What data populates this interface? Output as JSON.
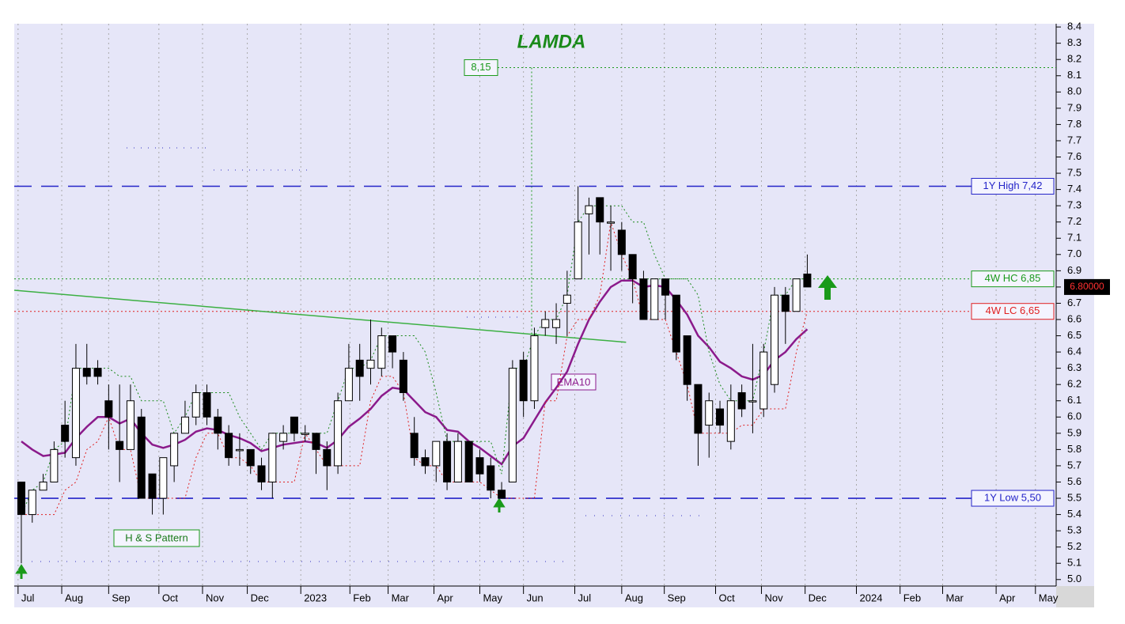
{
  "chart_data": {
    "type": "candlestick",
    "title": "LAMDA",
    "x": [
      0,
      1,
      2,
      3,
      4,
      5,
      6,
      7,
      8,
      9,
      10,
      11,
      12,
      13,
      14,
      15,
      16,
      17,
      18,
      19,
      20,
      21,
      22,
      23,
      24,
      25,
      26,
      27,
      28,
      29,
      30,
      31,
      32,
      33,
      34,
      35,
      36,
      37,
      38,
      39,
      40,
      41,
      42,
      43,
      44,
      45,
      46,
      47,
      48,
      49,
      50,
      51,
      52,
      53,
      54,
      55,
      56,
      57,
      58,
      59,
      60,
      61,
      62,
      63,
      64,
      65,
      66,
      67,
      68,
      69,
      70,
      71,
      72
    ],
    "open": [
      5.6,
      5.4,
      5.55,
      5.6,
      5.95,
      5.75,
      6.3,
      6.3,
      6.1,
      5.85,
      5.8,
      6.0,
      5.65,
      5.5,
      5.7,
      5.9,
      6.0,
      6.15,
      6.0,
      5.9,
      5.8,
      5.8,
      5.7,
      5.6,
      5.85,
      6.0,
      5.9,
      5.9,
      5.8,
      5.7,
      6.1,
      6.35,
      6.3,
      6.3,
      6.5,
      6.35,
      5.9,
      5.75,
      5.7,
      5.85,
      5.6,
      5.85,
      5.75,
      5.7,
      5.55,
      5.6,
      6.35,
      6.1,
      6.55,
      6.55,
      6.7,
      6.85,
      7.25,
      7.35,
      7.2,
      7.15,
      7.0,
      6.85,
      6.6,
      6.85,
      6.75,
      6.5,
      6.2,
      5.95,
      6.05,
      5.85,
      6.15,
      6.1,
      6.05,
      6.2,
      6.75,
      6.65,
      6.88
    ],
    "high": [
      5.6,
      5.55,
      5.65,
      5.85,
      6.1,
      6.45,
      6.45,
      6.35,
      6.2,
      6.2,
      6.2,
      6.05,
      5.65,
      5.75,
      5.9,
      6.1,
      6.2,
      6.2,
      6.05,
      5.95,
      5.9,
      5.8,
      5.75,
      5.9,
      5.95,
      6.0,
      5.95,
      5.9,
      5.85,
      6.15,
      6.45,
      6.45,
      6.6,
      6.55,
      6.5,
      6.4,
      6.0,
      5.8,
      5.85,
      5.9,
      5.9,
      5.85,
      5.8,
      5.75,
      5.6,
      6.35,
      6.4,
      6.55,
      6.65,
      6.7,
      6.9,
      7.42,
      7.35,
      7.35,
      7.3,
      7.2,
      7.0,
      6.9,
      6.85,
      6.85,
      6.75,
      6.5,
      6.2,
      6.15,
      6.1,
      6.2,
      6.2,
      6.45,
      6.45,
      6.8,
      6.8,
      6.85,
      7.0
    ],
    "low": [
      5.1,
      5.35,
      5.55,
      5.6,
      5.75,
      5.7,
      6.2,
      6.2,
      5.8,
      5.6,
      5.8,
      5.5,
      5.4,
      5.4,
      5.6,
      5.9,
      5.95,
      5.95,
      5.8,
      5.7,
      5.7,
      5.65,
      5.55,
      5.5,
      5.8,
      5.85,
      5.85,
      5.65,
      5.55,
      5.65,
      6.1,
      6.1,
      6.2,
      6.25,
      6.3,
      6.1,
      5.7,
      5.65,
      5.6,
      5.55,
      5.6,
      5.6,
      5.6,
      5.5,
      5.5,
      5.6,
      6.0,
      6.05,
      6.5,
      6.45,
      6.5,
      6.85,
      7.0,
      7.0,
      6.9,
      6.9,
      6.7,
      6.6,
      6.6,
      6.6,
      6.35,
      6.1,
      5.7,
      5.75,
      5.9,
      5.8,
      6.0,
      5.9,
      6.0,
      6.15,
      6.45,
      6.65,
      6.8
    ],
    "close": [
      5.4,
      5.55,
      5.6,
      5.8,
      5.85,
      6.3,
      6.25,
      6.25,
      6.0,
      5.8,
      6.1,
      5.5,
      5.5,
      5.75,
      5.9,
      6.0,
      6.15,
      6.0,
      5.9,
      5.75,
      5.8,
      5.7,
      5.6,
      5.9,
      5.9,
      5.9,
      5.9,
      5.8,
      5.7,
      6.1,
      6.3,
      6.25,
      6.35,
      6.5,
      6.4,
      6.15,
      5.75,
      5.7,
      5.85,
      5.6,
      5.85,
      5.6,
      5.65,
      5.55,
      5.5,
      6.3,
      6.1,
      6.5,
      6.6,
      6.6,
      6.75,
      7.2,
      7.3,
      7.2,
      7.2,
      7.0,
      6.85,
      6.6,
      6.85,
      6.75,
      6.4,
      6.2,
      5.9,
      6.1,
      5.95,
      6.1,
      6.05,
      6.1,
      6.4,
      6.75,
      6.65,
      6.85,
      6.8
    ],
    "lines": [
      {
        "name": "EMA10",
        "color": "#8b1a8b",
        "style": "solid",
        "values": [
          5.85,
          5.8,
          5.76,
          5.77,
          5.78,
          5.87,
          5.94,
          6.0,
          6.0,
          5.96,
          5.99,
          5.9,
          5.83,
          5.81,
          5.83,
          5.86,
          5.91,
          5.93,
          5.92,
          5.89,
          5.87,
          5.84,
          5.79,
          5.81,
          5.83,
          5.84,
          5.85,
          5.84,
          5.81,
          5.86,
          5.94,
          5.99,
          6.05,
          6.13,
          6.18,
          6.17,
          6.1,
          6.03,
          6.0,
          5.92,
          5.91,
          5.85,
          5.81,
          5.76,
          5.71,
          5.82,
          5.87,
          5.98,
          6.09,
          6.18,
          6.28,
          6.45,
          6.6,
          6.71,
          6.8,
          6.84,
          6.84,
          6.8,
          6.81,
          6.8,
          6.72,
          6.63,
          6.5,
          6.43,
          6.34,
          6.3,
          6.25,
          6.23,
          6.26,
          6.35,
          6.4,
          6.48,
          6.54
        ]
      },
      {
        "color": "#1a8a1a",
        "style": "dotted",
        "values": [
          5.4,
          5.55,
          5.6,
          5.8,
          5.85,
          6.3,
          6.3,
          6.3,
          6.3,
          6.25,
          6.25,
          6.1,
          6.1,
          6.1,
          5.9,
          6.0,
          6.15,
          6.15,
          6.15,
          6.15,
          6.0,
          5.9,
          5.8,
          5.9,
          5.9,
          5.9,
          5.9,
          5.9,
          5.9,
          6.1,
          6.3,
          6.3,
          6.35,
          6.5,
          6.5,
          6.5,
          6.5,
          6.4,
          6.15,
          5.85,
          5.85,
          5.85,
          5.85,
          5.85,
          5.65,
          6.3,
          6.3,
          6.5,
          6.6,
          6.6,
          6.75,
          7.2,
          7.3,
          7.3,
          7.3,
          7.3,
          7.2,
          7.2,
          7.0,
          6.85,
          6.85,
          6.85,
          6.75,
          6.4,
          6.2,
          6.1,
          6.1,
          6.1,
          6.4,
          6.75,
          6.75,
          6.85,
          6.85
        ]
      },
      {
        "color": "#e02020",
        "style": "dotted",
        "values": [
          5.4,
          5.4,
          5.4,
          5.4,
          5.55,
          5.6,
          5.8,
          5.85,
          6.0,
          5.8,
          5.8,
          5.5,
          5.5,
          5.5,
          5.5,
          5.5,
          5.75,
          5.9,
          5.9,
          5.75,
          5.75,
          5.7,
          5.6,
          5.6,
          5.6,
          5.6,
          5.9,
          5.8,
          5.7,
          5.7,
          5.7,
          5.7,
          6.1,
          6.25,
          6.25,
          6.15,
          5.75,
          5.7,
          5.7,
          5.6,
          5.6,
          5.6,
          5.6,
          5.55,
          5.5,
          5.5,
          5.5,
          5.5,
          6.1,
          6.1,
          6.5,
          6.6,
          6.6,
          6.75,
          7.2,
          7.0,
          6.85,
          6.6,
          6.6,
          6.6,
          6.4,
          6.2,
          5.9,
          5.9,
          5.9,
          5.9,
          5.95,
          5.95,
          6.05,
          6.05,
          6.05,
          6.4,
          6.65
        ]
      }
    ],
    "trendline": {
      "x": [
        -0.65,
        55.4
      ],
      "values": [
        6.78,
        6.46
      ],
      "color": "#3cb043"
    },
    "levels": [
      {
        "label": "1Y High 7,42",
        "value": 7.42,
        "color": "#2424c8",
        "style": "dashed"
      },
      {
        "label": "4W HC 6,85",
        "value": 6.85,
        "color": "#1a9a1a",
        "style": "dotted"
      },
      {
        "label": "4W LC 6,65",
        "value": 6.65,
        "color": "#e02020",
        "style": "dotted"
      },
      {
        "label": "1Y Low 5,50",
        "value": 5.5,
        "color": "#2424c8",
        "style": "dashed"
      }
    ],
    "peak": {
      "label": "8,15",
      "value": 8.15,
      "color": "#1a9a1a"
    },
    "last_price": {
      "label": "6.80000",
      "value": 6.8
    },
    "pattern_label": "H & S Pattern",
    "xlim": [
      -0.65,
      94.8
    ],
    "ylim": [
      4.96,
      8.42
    ],
    "xticks": [
      {
        "value": -0.3,
        "label": "Jul"
      },
      {
        "value": 3.7,
        "label": "Aug"
      },
      {
        "value": 8.0,
        "label": "Sep"
      },
      {
        "value": 12.6,
        "label": "Oct"
      },
      {
        "value": 16.6,
        "label": "Nov"
      },
      {
        "value": 20.7,
        "label": "Dec"
      },
      {
        "value": 25.6,
        "label": "2023"
      },
      {
        "value": 30.1,
        "label": "Feb"
      },
      {
        "value": 33.6,
        "label": "Mar"
      },
      {
        "value": 37.8,
        "label": "Apr"
      },
      {
        "value": 42.0,
        "label": "May"
      },
      {
        "value": 46.0,
        "label": "Jun"
      },
      {
        "value": 50.7,
        "label": "Jul"
      },
      {
        "value": 55.0,
        "label": "Aug"
      },
      {
        "value": 58.9,
        "label": "Sep"
      },
      {
        "value": 63.6,
        "label": "Oct"
      },
      {
        "value": 67.8,
        "label": "Nov"
      },
      {
        "value": 71.8,
        "label": "Dec"
      },
      {
        "value": 76.5,
        "label": "2024"
      },
      {
        "value": 80.5,
        "label": "Feb"
      },
      {
        "value": 84.4,
        "label": "Mar"
      },
      {
        "value": 89.3,
        "label": "Apr"
      },
      {
        "value": 92.9,
        "label": "May"
      }
    ],
    "yticks": [
      {
        "value": 5,
        "label": "5.0"
      },
      5.1,
      5.2,
      5.3,
      5.4,
      5.5,
      5.6,
      5.7,
      5.8,
      5.9,
      {
        "value": 6,
        "label": "6.0"
      },
      6.1,
      6.2,
      6.3,
      6.4,
      6.5,
      6.6,
      6.7,
      6.8,
      6.9,
      {
        "value": 7,
        "label": "7.0"
      },
      7.1,
      7.2,
      7.3,
      7.4,
      7.5,
      7.6,
      7.7,
      7.8,
      7.9,
      {
        "value": 8,
        "label": "8.0"
      },
      8.1,
      8.2,
      8.3,
      8.4
    ],
    "grid": true
  }
}
